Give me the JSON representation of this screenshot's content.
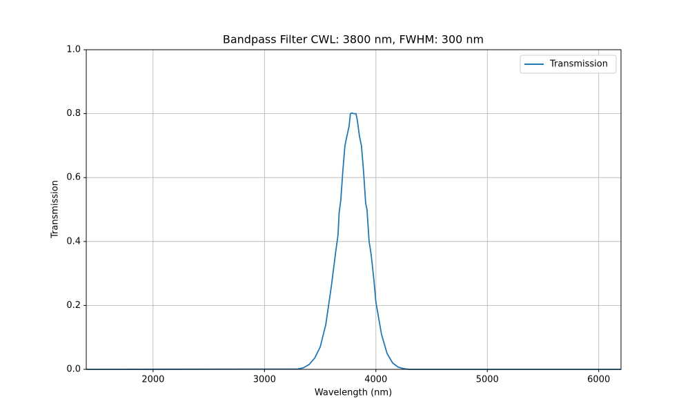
{
  "chart_data": {
    "type": "line",
    "title": "Bandpass Filter CWL: 3800 nm, FWHM: 300 nm",
    "x_label": "Wavelength (nm)",
    "y_label": "Transmission",
    "x": [
      1400,
      3300,
      3350,
      3400,
      3450,
      3500,
      3550,
      3600,
      3640,
      3660,
      3670,
      3685,
      3703,
      3722,
      3740,
      3759,
      3771,
      3784,
      3800,
      3821,
      3833,
      3852,
      3870,
      3889,
      3908,
      3920,
      3939,
      3957,
      3982,
      4000,
      4050,
      4100,
      4150,
      4200,
      4250,
      4300,
      6200
    ],
    "series": [
      {
        "name": "Transmission",
        "color": "#1f77b4",
        "values": [
          0,
          0.001,
          0.005,
          0.015,
          0.035,
          0.07,
          0.14,
          0.26,
          0.37,
          0.42,
          0.49,
          0.53,
          0.62,
          0.7,
          0.73,
          0.76,
          0.8,
          0.802,
          0.8,
          0.8,
          0.78,
          0.73,
          0.7,
          0.62,
          0.52,
          0.5,
          0.4,
          0.36,
          0.28,
          0.21,
          0.11,
          0.05,
          0.02,
          0.007,
          0.002,
          0,
          0
        ]
      }
    ],
    "xlim": [
      1400,
      6200
    ],
    "xticks": [
      2000,
      3000,
      4000,
      5000,
      6000
    ],
    "ylim": [
      0,
      1
    ],
    "yticks": [
      {
        "value": 0,
        "label": "0.0"
      },
      {
        "value": 0.2,
        "label": "0.2"
      },
      {
        "value": 0.4,
        "label": "0.4"
      },
      {
        "value": 0.6,
        "label": "0.6"
      },
      {
        "value": 0.8,
        "label": "0.8"
      },
      {
        "value": 1,
        "label": "1.0"
      }
    ],
    "grid": true,
    "legend": "upper right"
  }
}
